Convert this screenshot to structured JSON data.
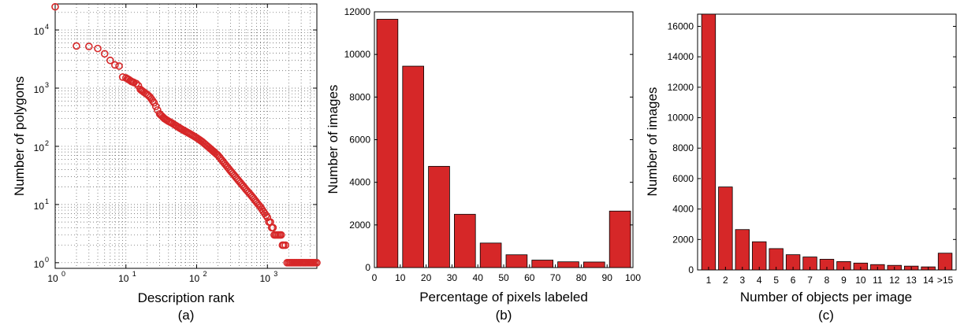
{
  "chart_data": [
    {
      "panel": "(a)",
      "type": "scatter",
      "xscale": "log",
      "yscale": "log",
      "xlabel": "Description rank",
      "ylabel": "Number of polygons",
      "xlim": [
        1,
        5000
      ],
      "ylim": [
        0.8,
        28000
      ],
      "grid": "dotted",
      "marker": "circle",
      "x_ticks": [
        {
          "base": "10",
          "exp": "0",
          "value": 1
        },
        {
          "base": "10",
          "exp": "1",
          "value": 10
        },
        {
          "base": "10",
          "exp": "2",
          "value": 100
        },
        {
          "base": "10",
          "exp": "3",
          "value": 1000
        }
      ],
      "y_ticks": [
        {
          "base": "10",
          "exp": "0",
          "value": 1
        },
        {
          "base": "10",
          "exp": "1",
          "value": 10
        },
        {
          "base": "10",
          "exp": "2",
          "value": 100
        },
        {
          "base": "10",
          "exp": "3",
          "value": 1000
        },
        {
          "base": "10",
          "exp": "4",
          "value": 10000
        }
      ],
      "points": [
        [
          1,
          25000
        ],
        [
          2,
          5300
        ],
        [
          3,
          5200
        ],
        [
          4,
          4800
        ],
        [
          5,
          3900
        ],
        [
          6,
          3000
        ],
        [
          7,
          2500
        ],
        [
          8,
          2400
        ],
        [
          9,
          1550
        ],
        [
          10,
          1500
        ],
        [
          11,
          1400
        ],
        [
          12,
          1300
        ],
        [
          13,
          1250
        ],
        [
          14,
          1200
        ],
        [
          15,
          1100
        ],
        [
          16,
          950
        ],
        [
          18,
          850
        ],
        [
          20,
          780
        ],
        [
          22,
          700
        ],
        [
          25,
          560
        ],
        [
          28,
          420
        ],
        [
          30,
          360
        ],
        [
          35,
          300
        ],
        [
          40,
          270
        ],
        [
          45,
          250
        ],
        [
          50,
          230
        ],
        [
          60,
          200
        ],
        [
          70,
          180
        ],
        [
          80,
          165
        ],
        [
          100,
          140
        ],
        [
          120,
          120
        ],
        [
          150,
          95
        ],
        [
          200,
          70
        ],
        [
          250,
          50
        ],
        [
          300,
          38
        ],
        [
          400,
          25
        ],
        [
          500,
          18
        ],
        [
          600,
          14
        ],
        [
          700,
          11
        ],
        [
          800,
          9
        ],
        [
          1000,
          6
        ],
        [
          1100,
          5
        ],
        [
          1200,
          4
        ],
        [
          1300,
          3
        ],
        [
          1500,
          3
        ],
        [
          1700,
          2
        ],
        [
          1800,
          2
        ],
        [
          2000,
          1
        ],
        [
          2500,
          1
        ],
        [
          3000,
          1
        ],
        [
          3500,
          1
        ],
        [
          4000,
          1
        ],
        [
          4500,
          1
        ],
        [
          5000,
          1
        ]
      ],
      "color": "#d62728"
    },
    {
      "panel": "(b)",
      "type": "bar",
      "xlabel": "Percentage of pixels labeled",
      "ylabel": "Number of images",
      "xlim": [
        0,
        100
      ],
      "ylim": [
        0,
        12000
      ],
      "x_ticks": [
        "0",
        "10",
        "20",
        "30",
        "40",
        "50",
        "60",
        "70",
        "80",
        "90",
        "100"
      ],
      "y_ticks": [
        "0",
        "2000",
        "4000",
        "6000",
        "8000",
        "10000",
        "12000"
      ],
      "bin_edges": [
        0,
        10,
        20,
        30,
        40,
        50,
        60,
        70,
        80,
        90,
        100
      ],
      "values": [
        11650,
        9450,
        4750,
        2500,
        1150,
        600,
        350,
        270,
        260,
        2650
      ],
      "color": "#d62728"
    },
    {
      "panel": "(c)",
      "type": "bar",
      "xlabel": "Number of objects per image",
      "ylabel": "Number of images",
      "ylim": [
        0,
        16800
      ],
      "categories": [
        "1",
        "2",
        "3",
        "4",
        "5",
        "6",
        "7",
        "8",
        "9",
        "10",
        "11",
        "12",
        "13",
        "14",
        ">15"
      ],
      "y_ticks": [
        "0",
        "2000",
        "4000",
        "6000",
        "8000",
        "10000",
        "12000",
        "14000",
        "16000"
      ],
      "values": [
        16800,
        5450,
        2650,
        1850,
        1400,
        1000,
        850,
        700,
        550,
        450,
        350,
        300,
        250,
        200,
        1100
      ],
      "color": "#d62728"
    }
  ]
}
